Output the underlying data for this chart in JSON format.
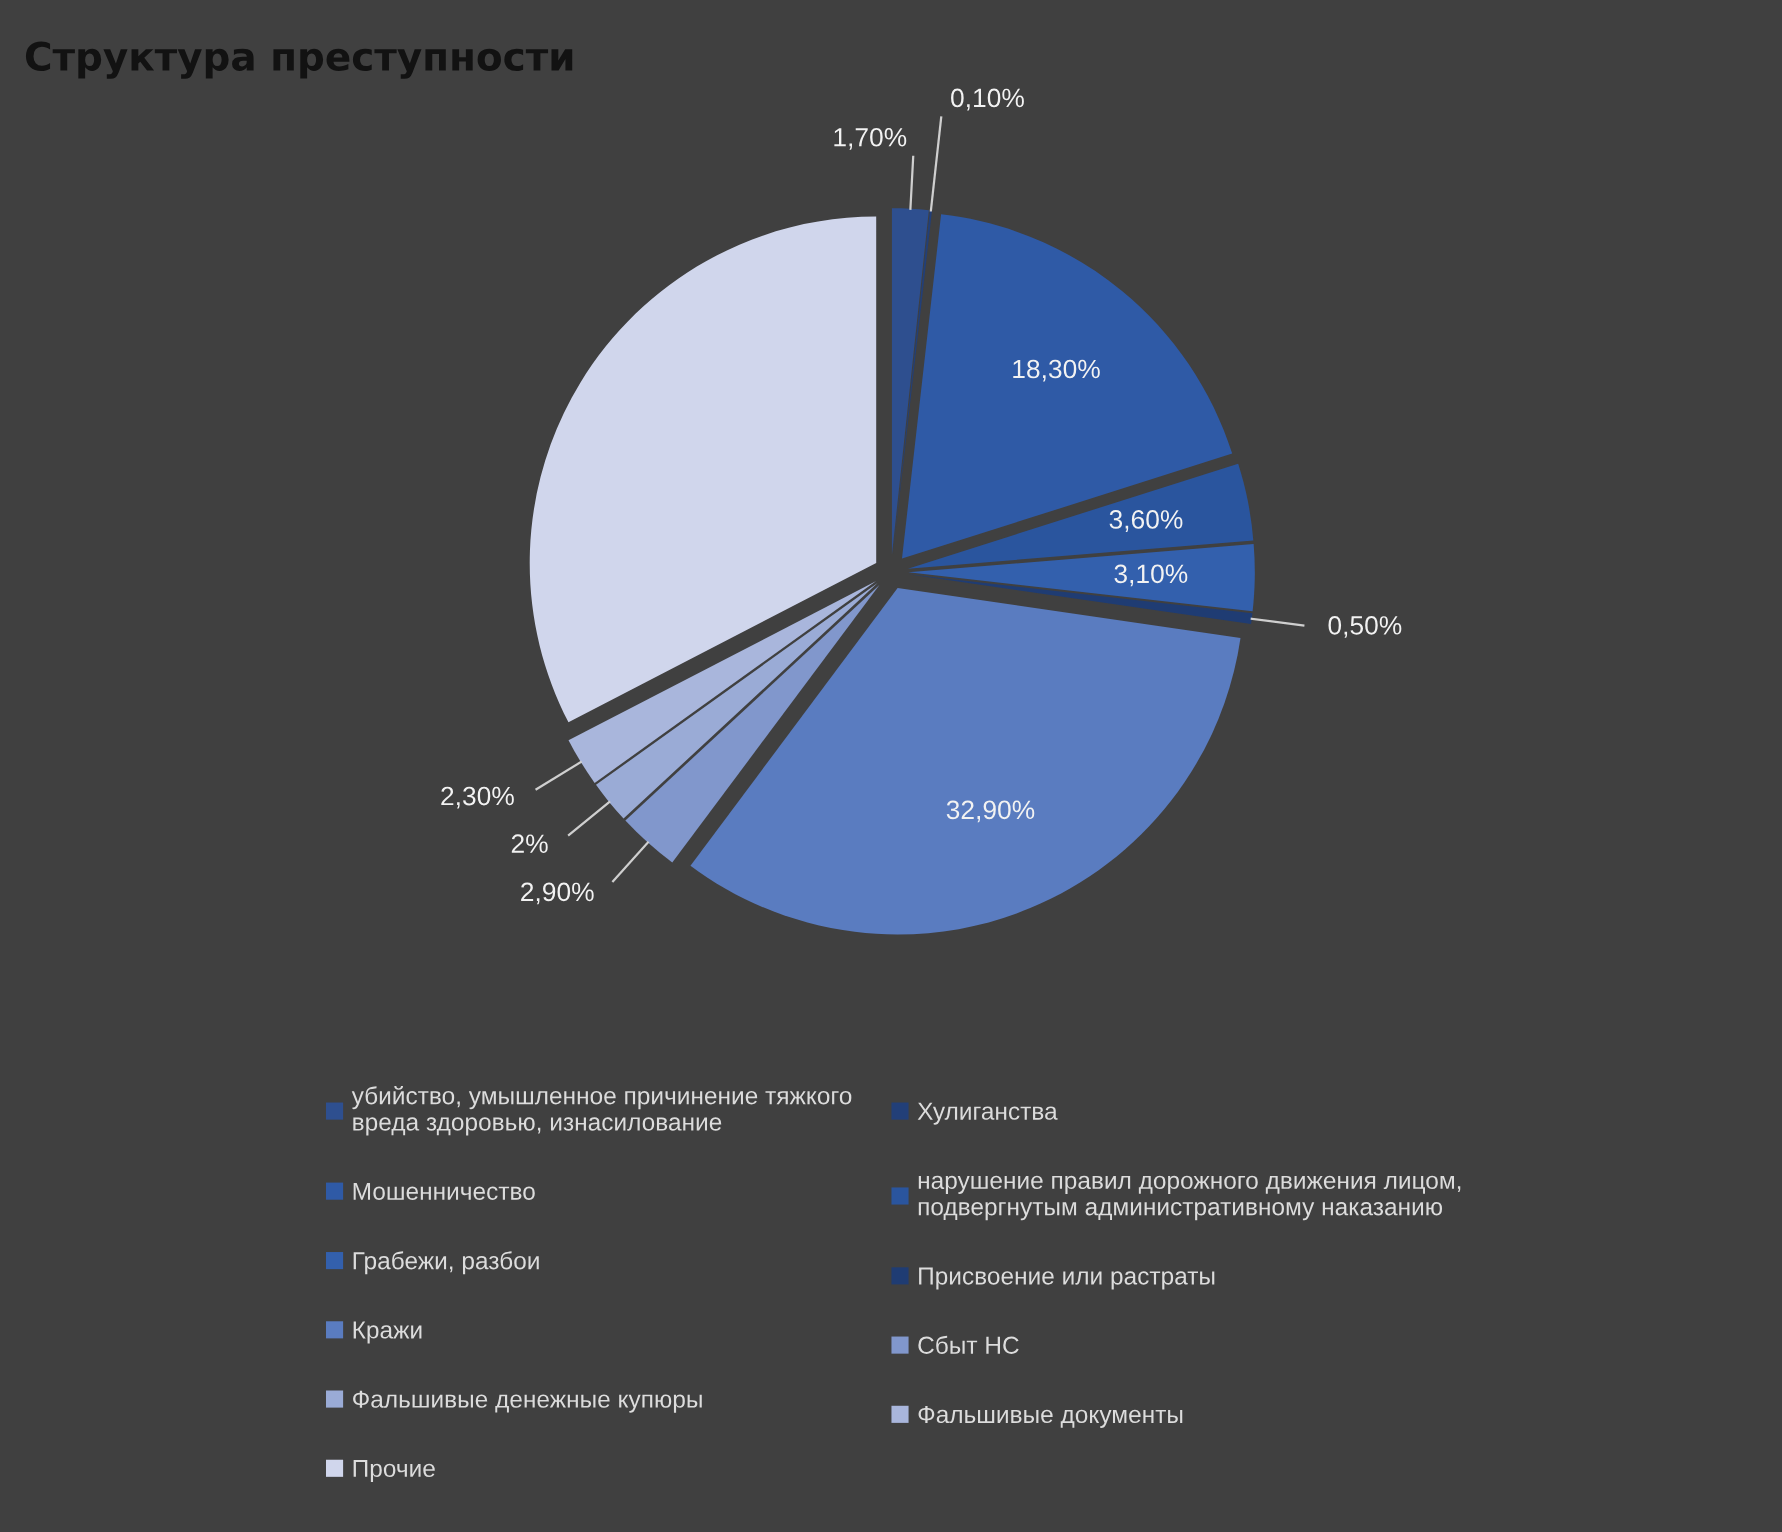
{
  "chart_data": {
    "type": "pie",
    "title": "Структура преступности",
    "categories": [
      "убийство, умышленное причинение тяжкого вреда здоровью, изнасилование",
      "Хулиганства",
      "Мошенничество",
      "нарушение правил дорожного движения лицом, подвергнутым административному наказанию",
      "Грабежи, разбои",
      "Присвоение или растраты",
      "Кражи",
      "Сбыт НС",
      "Фальшивые денежные купюры",
      "Фальшивые документы",
      "Прочие"
    ],
    "values": [
      1.7,
      0.1,
      18.3,
      3.6,
      3.1,
      0.5,
      32.9,
      2.9,
      2,
      2.3,
      32.6
    ],
    "colors": [
      "#2e4f8f",
      "#223f78",
      "#2f5aa6",
      "#2a559e",
      "#3360ad",
      "#1f3c73",
      "#5a7cc0",
      "#8197cc",
      "#9aabd6",
      "#a9b6dc",
      "#d0d6ec"
    ],
    "value_labels": [
      "1,70%",
      "0,10%",
      "18,30%",
      "3,60%",
      "3,10%",
      "0,50%",
      "32,90%",
      "2,90%",
      "2%",
      "2,30%",
      null
    ],
    "legend": "bottom"
  }
}
